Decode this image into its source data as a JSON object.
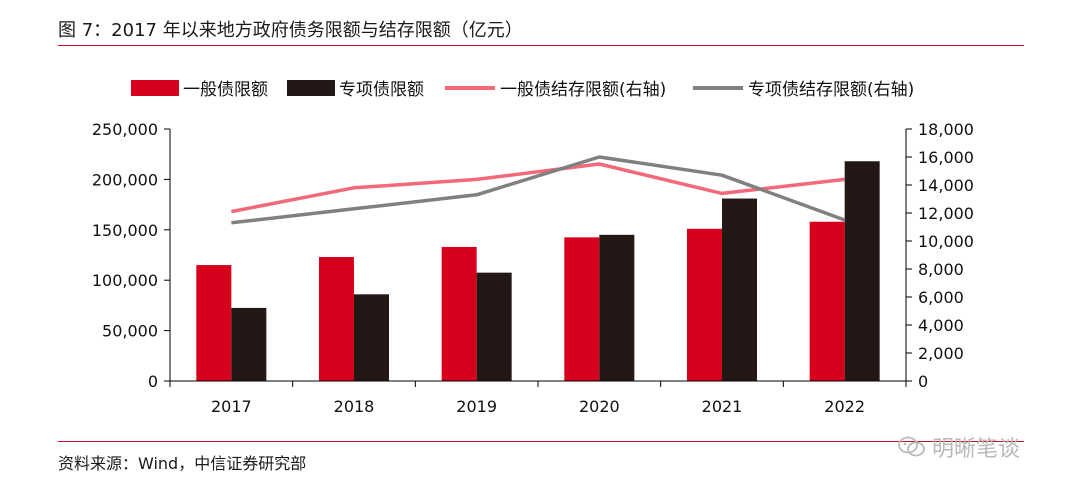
{
  "header": {
    "title": "图 7：2017 年以来地方政府债务限额与结存限额（亿元）"
  },
  "footer": {
    "source": "资料来源：Wind，中信证券研究部"
  },
  "watermark": {
    "text": "明晰笔谈",
    "icon": "wechat-icon"
  },
  "colors": {
    "accent_red": "#d6001c",
    "dark_bar": "#231815",
    "pink_line": "#f2697a",
    "gray_line": "#808080",
    "rule_red": "#c8102e"
  },
  "chart_data": {
    "type": "bar",
    "categories": [
      "2017",
      "2018",
      "2019",
      "2020",
      "2021",
      "2022"
    ],
    "series": [
      {
        "name": "一般债限额",
        "type": "bar",
        "axis": "left",
        "color": "#d6001c",
        "values": [
          115000,
          123000,
          133000,
          142500,
          151000,
          158000
        ]
      },
      {
        "name": "专项债限额",
        "type": "bar",
        "axis": "left",
        "color": "#231815",
        "values": [
          72500,
          86000,
          107500,
          145000,
          181000,
          218000
        ]
      },
      {
        "name": "一般债结存限额(右轴)",
        "type": "line",
        "axis": "right",
        "color": "#f2697a",
        "values": [
          12100,
          13800,
          14400,
          15500,
          13400,
          14400
        ]
      },
      {
        "name": "专项债结存限额(右轴)",
        "type": "line",
        "axis": "right",
        "color": "#808080",
        "values": [
          11300,
          12300,
          13300,
          16000,
          14700,
          11500
        ]
      }
    ],
    "left_axis": {
      "ylim": [
        0,
        250000
      ],
      "ticks": [
        "0",
        "50,000",
        "100,000",
        "150,000",
        "200,000",
        "250,000"
      ]
    },
    "right_axis": {
      "ylim": [
        0,
        18000
      ],
      "ticks": [
        "0",
        "2,000",
        "4,000",
        "6,000",
        "8,000",
        "10,000",
        "12,000",
        "14,000",
        "16,000",
        "18,000"
      ]
    },
    "legend_position": "top",
    "grid": false
  }
}
